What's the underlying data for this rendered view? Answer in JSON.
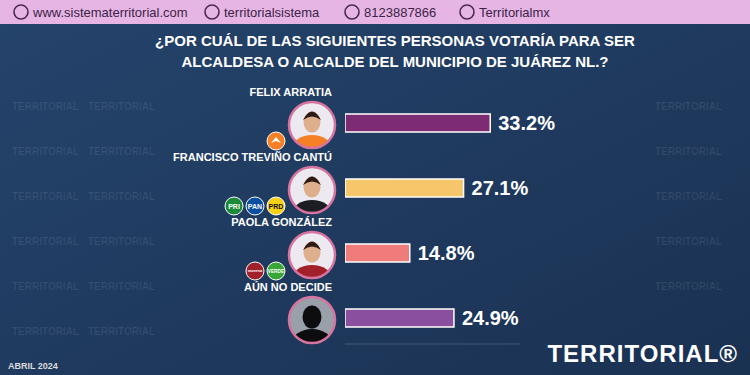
{
  "chart_data": {
    "type": "bar",
    "orientation": "horizontal",
    "title": "¿POR CUÁL DE LAS SIGUIENTES PERSONAS VOTARÍA PARA SER\nALCALDESA O ALCALDE DEL MUNICIPIO DE JUÁREZ NL.?",
    "categories": [
      "FELIX ARRATIA",
      "FRANCISCO TREVIÑO CANTÚ",
      "PAOLA GONZÁLEZ",
      "AÚN NO DECIDE"
    ],
    "values": [
      33.2,
      27.1,
      14.8,
      24.9
    ],
    "value_labels": [
      "33.2%",
      "27.1%",
      "14.8%",
      "24.9%"
    ],
    "colors": [
      "#7d2c74",
      "#f6c66a",
      "#f07b7b",
      "#8a4f9f"
    ],
    "xlim": [
      0,
      40
    ],
    "data_labels": true,
    "tick_labels": false,
    "grid": false,
    "parties": [
      [
        {
          "color": "#f58025"
        }
      ],
      [
        {
          "label": "PRI",
          "color": "#1b8a3a"
        },
        {
          "label": "PAN",
          "color": "#0a4ea2"
        },
        {
          "label": "PRD",
          "color": "#f7d117"
        }
      ],
      [
        {
          "label": "morena",
          "color": "#a2202a"
        },
        {
          "label": "VERDE",
          "color": "#3aa636"
        }
      ],
      null
    ],
    "header_links": [
      "www.sistematerritorial.com",
      "territorialsistema",
      "8123887866",
      "Territorialmx"
    ],
    "date": "ABRIL 2024",
    "brand": "TERRITORIAL®",
    "watermark": "TERRITORIAL"
  }
}
